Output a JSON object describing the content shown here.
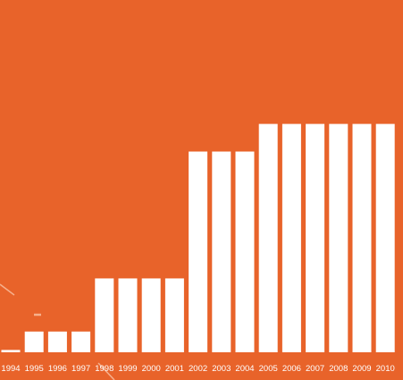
{
  "colors": {
    "background": "#E8632A",
    "bar": "#FFFFFF",
    "decor_line": "#F6B08C"
  },
  "chart_data": {
    "type": "bar",
    "title": "",
    "xlabel": "",
    "ylabel": "",
    "categories": [
      "1994",
      "1995",
      "1996",
      "1997",
      "1998",
      "1999",
      "2000",
      "2001",
      "2002",
      "2003",
      "2004",
      "2005",
      "2006",
      "2007",
      "2008",
      "2009",
      "2010"
    ],
    "values": [
      1,
      9,
      9,
      9,
      32,
      32,
      32,
      32,
      87,
      87,
      87,
      99,
      99,
      99,
      99,
      99,
      99
    ],
    "ylim": [
      0,
      100
    ],
    "grid": false,
    "legend": "none"
  }
}
